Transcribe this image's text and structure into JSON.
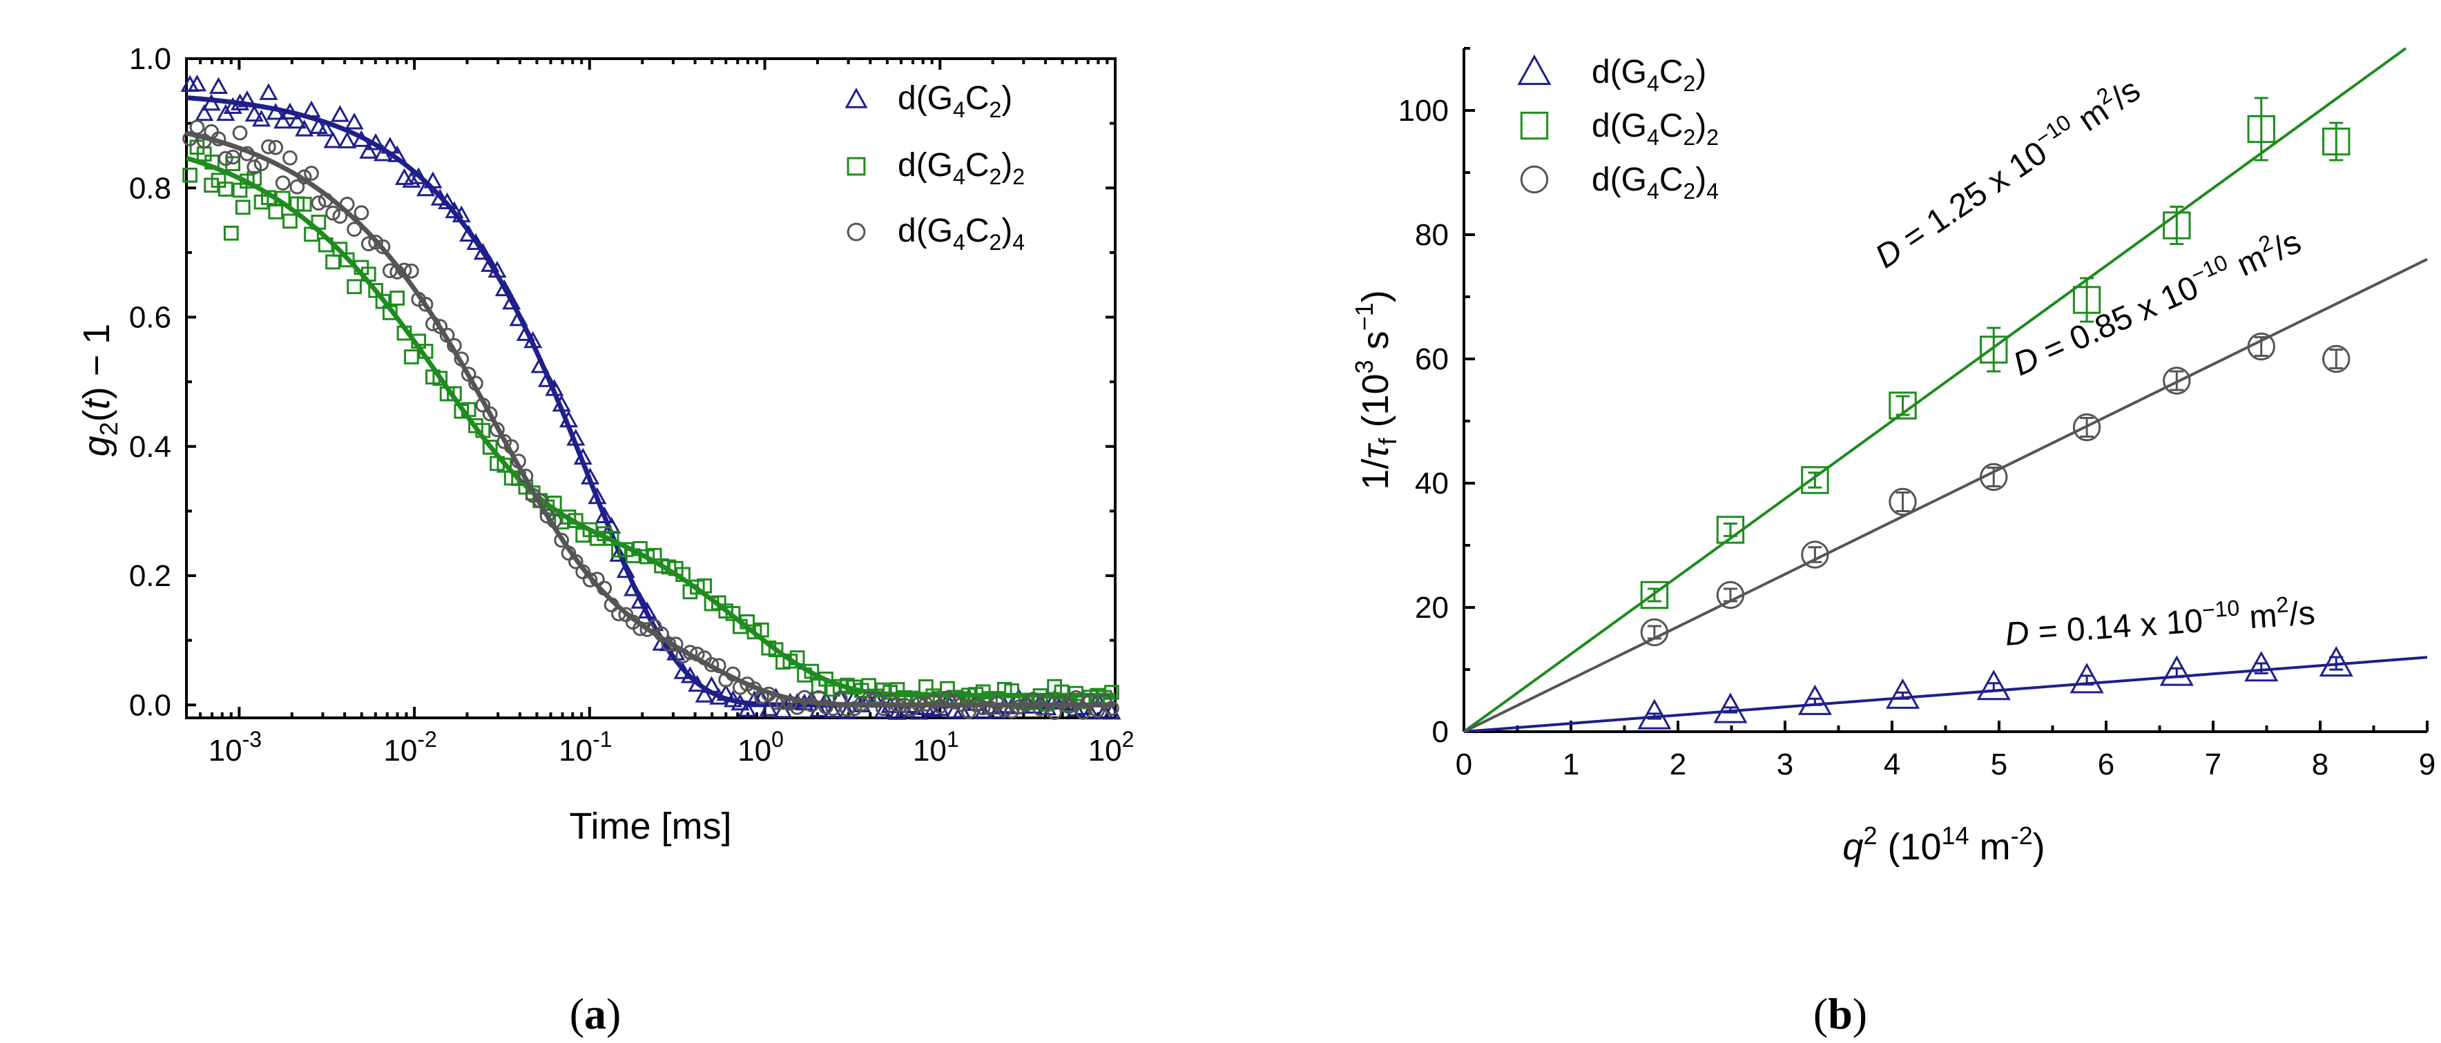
{
  "colors": {
    "blue": "#1f1f8c",
    "green": "#1e8c1e",
    "gray": "#555555"
  },
  "chart_data": [
    {
      "panel": "a",
      "type": "scatter",
      "caption_open": "(",
      "caption_letter": "a",
      "caption_close": ")",
      "xscale": "log",
      "xlim": [
        0.0005,
        100
      ],
      "ylim": [
        -0.02,
        1.0
      ],
      "xlabel": "Time [ms]",
      "ylabel_main": "g",
      "ylabel_sub": "2",
      "ylabel_paren_open": "(",
      "ylabel_var": "t",
      "ylabel_paren_close": ")",
      "ylabel_tail": " − 1",
      "yticks": [
        "0.0",
        "0.2",
        "0.4",
        "0.6",
        "0.8",
        "1.0"
      ],
      "xticks": [
        {
          "base": "10",
          "exp": "-3"
        },
        {
          "base": "10",
          "exp": "-2"
        },
        {
          "base": "10",
          "exp": "-1"
        },
        {
          "base": "10",
          "exp": "0"
        },
        {
          "base": "10",
          "exp": "1"
        },
        {
          "base": "10",
          "exp": "2"
        }
      ],
      "legend": [
        {
          "marker": "triangle",
          "color": "#1f1f8c",
          "pre": "d(G",
          "s1": "4",
          "mid": "C",
          "s2": "2",
          "post": ")",
          "s3": ""
        },
        {
          "marker": "square",
          "color": "#1e8c1e",
          "pre": "d(G",
          "s1": "4",
          "mid": "C",
          "s2": "2",
          "post": ")",
          "s3": "2"
        },
        {
          "marker": "circle",
          "color": "#555555",
          "pre": "d(G",
          "s1": "4",
          "mid": "C",
          "s2": "2",
          "post": ")",
          "s3": "4"
        }
      ],
      "series": [
        {
          "name": "d(G4C2)",
          "marker": "triangle",
          "color": "#1f1f8c",
          "model": [
            {
              "a": 0.95,
              "tau": 0.1,
              "beta": 0.85
            }
          ],
          "scatter": 0.012,
          "points": 130
        },
        {
          "name": "d(G4C2)2",
          "marker": "square",
          "color": "#1e8c1e",
          "model": [
            {
              "a": 0.58,
              "tau": 0.013,
              "beta": 0.75
            },
            {
              "a": 0.3,
              "tau": 0.75,
              "beta": 0.85
            }
          ],
          "offset": 0.015,
          "scatter": 0.015,
          "points": 130,
          "outliers": [
            {
              "x": 0.0009,
              "y": 0.73
            },
            {
              "x": 0.00105,
              "y": 0.77
            },
            {
              "x": 0.0007,
              "y": 0.84
            }
          ]
        },
        {
          "name": "d(G4C2)4",
          "marker": "circle",
          "color": "#555555",
          "model": [
            {
              "a": 0.73,
              "tau": 0.028,
              "beta": 0.75
            },
            {
              "a": 0.19,
              "tau": 0.42,
              "beta": 0.9
            }
          ],
          "scatter": 0.012,
          "points": 130
        }
      ]
    },
    {
      "panel": "b",
      "type": "scatter",
      "caption_open": "(",
      "caption_letter": "b",
      "caption_close": ")",
      "xlim": [
        0,
        9
      ],
      "ylim": [
        0,
        110
      ],
      "xticks": [
        "0",
        "1",
        "2",
        "3",
        "4",
        "5",
        "6",
        "7",
        "8",
        "9"
      ],
      "yticks": [
        "0",
        "20",
        "40",
        "60",
        "80",
        "100"
      ],
      "xlabel_var": "q",
      "xlabel_sup": "2",
      "xlabel_rest": " (10",
      "xlabel_exp": "14",
      "xlabel_unit": " m",
      "xlabel_unit_exp": "-2",
      "xlabel_close": ")",
      "ylabel_pre": "1/",
      "ylabel_var": "τ",
      "ylabel_sub": "f",
      "ylabel_mid": " (10",
      "ylabel_exp": "3",
      "ylabel_unit": " s",
      "ylabel_unit_exp": "−1",
      "ylabel_close": ")",
      "legend": [
        {
          "marker": "triangle",
          "color": "#1f1f8c",
          "pre": "d(G",
          "s1": "4",
          "mid": "C",
          "s2": "2",
          "post": ")",
          "s3": ""
        },
        {
          "marker": "square",
          "color": "#1e8c1e",
          "pre": "d(G",
          "s1": "4",
          "mid": "C",
          "s2": "2",
          "post": ")",
          "s3": "2"
        },
        {
          "marker": "circle",
          "color": "#555555",
          "pre": "d(G",
          "s1": "4",
          "mid": "C",
          "s2": "2",
          "post": ")",
          "s3": "4"
        }
      ],
      "series": [
        {
          "name": "d(G4C2)",
          "marker": "triangle",
          "color": "#1f1f8c",
          "slope": 1.33,
          "x": [
            1.78,
            2.49,
            3.28,
            4.1,
            4.95,
            5.82,
            6.66,
            7.45,
            8.15
          ],
          "y": [
            2.5,
            3.5,
            4.8,
            5.8,
            7.2,
            8.3,
            9.5,
            10.2,
            11.0
          ],
          "err": [
            0.4,
            0.4,
            0.5,
            0.5,
            0.6,
            0.7,
            0.7,
            0.8,
            1.0
          ]
        },
        {
          "name": "d(G4C2)2",
          "marker": "square",
          "color": "#1e8c1e",
          "slope": 12.5,
          "x": [
            1.78,
            2.49,
            3.28,
            4.1,
            4.95,
            5.82,
            6.66,
            7.45,
            8.15
          ],
          "y": [
            22,
            32.5,
            40.5,
            52.5,
            61.5,
            69.5,
            81.5,
            97,
            95
          ],
          "err": [
            1.0,
            1.0,
            1.2,
            1.5,
            3.5,
            3.5,
            3.0,
            5.0,
            3.0
          ]
        },
        {
          "name": "d(G4C2)4",
          "marker": "circle",
          "color": "#555555",
          "slope": 8.45,
          "x": [
            1.78,
            2.49,
            3.28,
            4.1,
            4.95,
            5.82,
            6.66,
            7.45,
            8.15
          ],
          "y": [
            16,
            22,
            28.5,
            37,
            41,
            49,
            56.5,
            62,
            60
          ],
          "err": [
            1.0,
            1.0,
            1.2,
            1.5,
            1.5,
            1.5,
            1.5,
            1.5,
            1.5
          ]
        }
      ],
      "annotations": [
        {
          "var": "D",
          "text": " = 1.25 x 10",
          "exp": "−10",
          "unit": " m",
          "unit_exp": "2",
          "tail": "/s",
          "color": "#1e8c1e"
        },
        {
          "var": "D",
          "text": " = 0.85 x 10",
          "exp": "−10",
          "unit": " m",
          "unit_exp": "2",
          "tail": "/s",
          "color": "#555555"
        },
        {
          "var": "D",
          "text": " = 0.14 x 10",
          "exp": "−10",
          "unit": " m",
          "unit_exp": "2",
          "tail": "/s",
          "color": "#1f1f8c"
        }
      ]
    }
  ]
}
